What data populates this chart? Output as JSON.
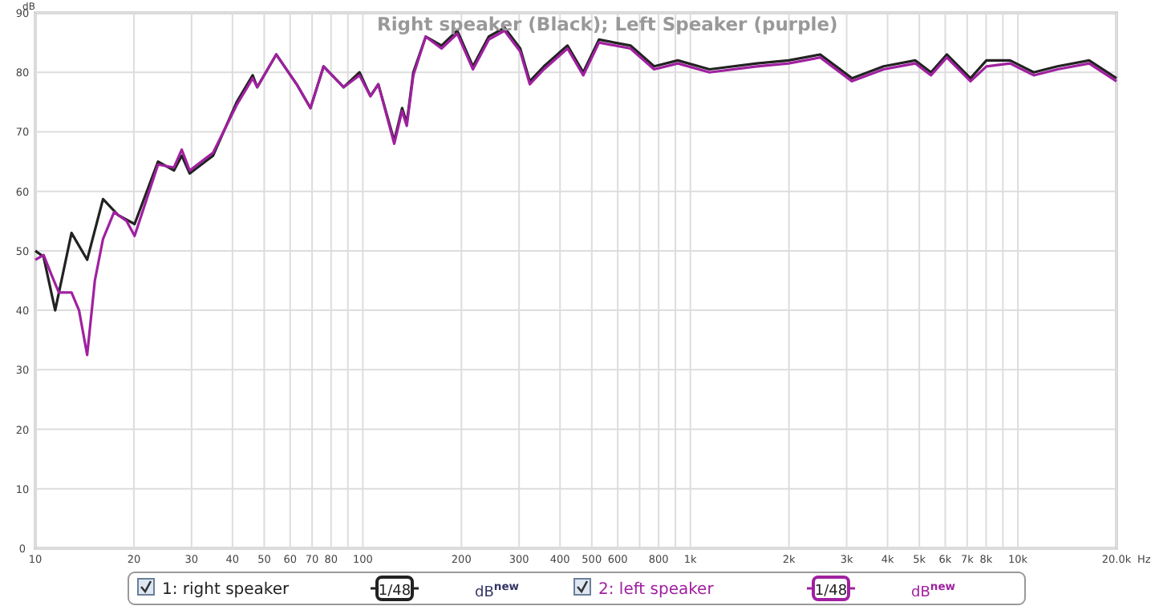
{
  "chart_data": {
    "type": "line",
    "title": "Right speaker (Black); Left Speaker (purple)",
    "ylabel": "dB",
    "xlabel": "Hz",
    "log": "x",
    "grid": true,
    "legend": "bottom",
    "marker": "none",
    "line_style": "solid",
    "xlim": [
      10,
      20000
    ],
    "ylim": [
      0,
      90
    ],
    "yticks": [
      0,
      10,
      20,
      30,
      40,
      50,
      60,
      70,
      80,
      90
    ],
    "xticks": [
      10,
      20,
      30,
      40,
      50,
      60,
      70,
      80,
      {
        "value": 90,
        "label": null
      },
      100,
      200,
      300,
      400,
      500,
      600,
      {
        "value": 700,
        "label": null
      },
      800,
      {
        "value": 900,
        "label": null
      },
      {
        "value": 1000,
        "label": "1k"
      },
      {
        "value": 2000,
        "label": "2k"
      },
      {
        "value": 3000,
        "label": "3k"
      },
      {
        "value": 4000,
        "label": "4k"
      },
      {
        "value": 5000,
        "label": "5k"
      },
      {
        "value": 6000,
        "label": "6k"
      },
      {
        "value": 7000,
        "label": "7k"
      },
      {
        "value": 8000,
        "label": "8k"
      },
      {
        "value": 9000,
        "label": null
      },
      {
        "value": 10000,
        "label": "10k"
      },
      {
        "value": 20000,
        "label": "20.0k"
      }
    ],
    "annotations": [
      "1/48",
      "dB$^{new}$",
      "1/48",
      "dB$^{new}$"
    ],
    "series": [
      {
        "name": "1: right speaker",
        "color": "#222222",
        "x": [
          10,
          10.6,
          11.5,
          12.9,
          14.4,
          16.1,
          17.9,
          20.1,
          23.7,
          26.5,
          28,
          29.6,
          34.9,
          41.2,
          46.1,
          47.6,
          54.4,
          62.8,
          69.2,
          75.9,
          87.4,
          97.7,
          105.5,
          111.5,
          124.7,
          131.8,
          136.2,
          142.6,
          155.6,
          173.9,
          194.2,
          216.9,
          242.3,
          270.7,
          302.4,
          323.4,
          357.2,
          421.6,
          470.9,
          526,
          656.3,
          775.2,
          915.5,
          1144,
          1595,
          1994,
          2492,
          3114,
          3889,
          4857,
          5428,
          6066,
          7166,
          8013,
          9466,
          11180,
          13210,
          16500,
          20000
        ],
        "values": [
          50,
          49,
          40,
          53,
          48.5,
          58.7,
          56,
          54.5,
          65,
          63.5,
          66,
          63,
          66,
          75,
          79.5,
          77.5,
          83,
          78,
          74,
          81,
          77.5,
          80,
          76,
          78,
          68.5,
          74,
          71.5,
          80,
          86,
          84.5,
          87,
          81,
          86,
          87.5,
          84,
          78.5,
          81,
          84.5,
          80,
          85.5,
          84.5,
          81,
          82,
          80.5,
          81.5,
          82,
          83,
          79,
          81,
          82,
          80,
          83,
          79,
          82,
          82,
          80,
          81,
          82,
          79
        ]
      },
      {
        "name": "2: left speaker",
        "color": "#a020a0",
        "x": [
          10,
          10.6,
          11.2,
          11.8,
          12.9,
          13.6,
          14.4,
          15.2,
          16.1,
          17.4,
          19,
          20.1,
          23.7,
          26.5,
          28,
          29.6,
          34.9,
          41.2,
          46.1,
          47.6,
          54.4,
          62.8,
          69.2,
          75.9,
          87.4,
          97.7,
          105.5,
          111.5,
          124.7,
          131.8,
          136.2,
          142.6,
          155.6,
          173.9,
          194.2,
          216.9,
          242.3,
          270.7,
          302.4,
          323.4,
          357.2,
          421.6,
          470.9,
          526,
          656.3,
          775.2,
          915.5,
          1144,
          1595,
          1994,
          2492,
          3114,
          3889,
          4857,
          5428,
          6066,
          7166,
          8013,
          9466,
          11180,
          13210,
          16500,
          20000
        ],
        "values": [
          48.5,
          49.3,
          46,
          43,
          43,
          40,
          32.5,
          45,
          52,
          56.5,
          55,
          52.5,
          64.5,
          64,
          67,
          63.5,
          66.5,
          74.5,
          79,
          77.5,
          83,
          78,
          74,
          81,
          77.5,
          79.5,
          76,
          78,
          68,
          73.5,
          71,
          79.5,
          86,
          84,
          86.5,
          80.5,
          85.5,
          87,
          83.5,
          78,
          80.5,
          84,
          79.5,
          85,
          84,
          80.5,
          81.5,
          80,
          81,
          81.5,
          82.5,
          78.5,
          80.5,
          81.5,
          79.5,
          82.5,
          78.5,
          81,
          81.5,
          79.5,
          80.5,
          81.5,
          78.5
        ]
      }
    ]
  }
}
